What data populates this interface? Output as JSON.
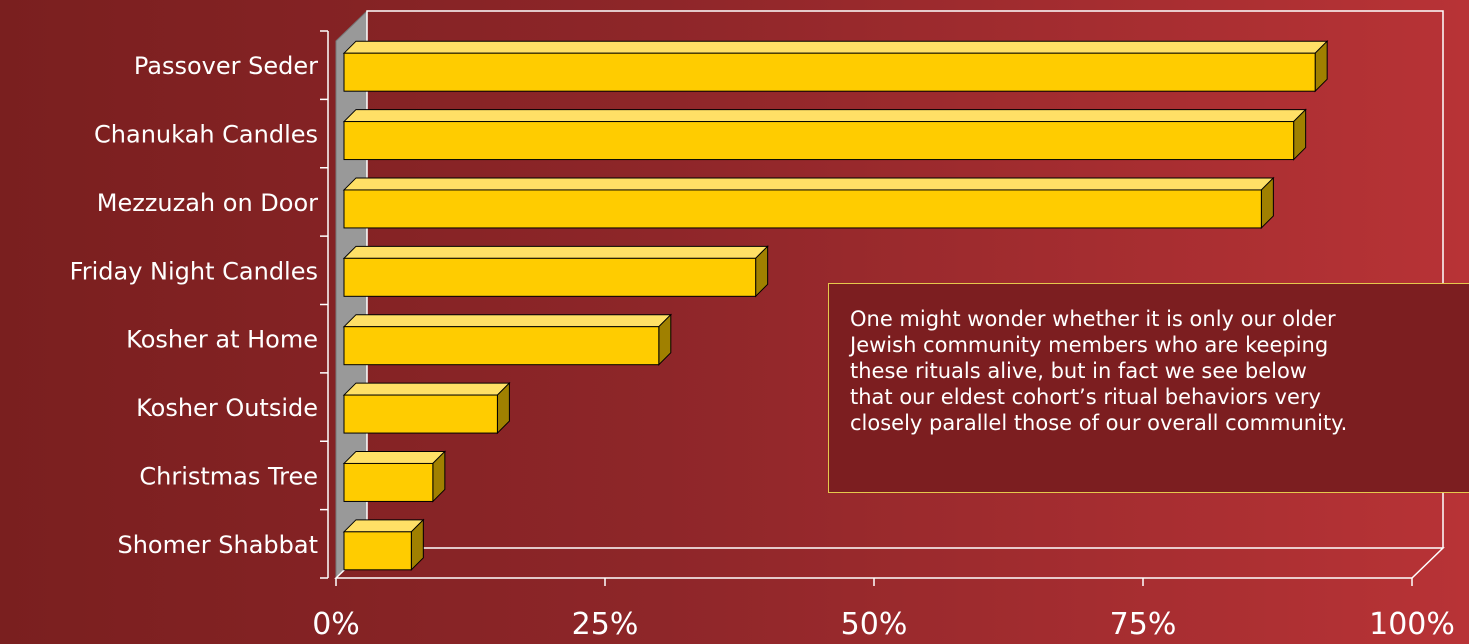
{
  "chart_data": {
    "type": "bar",
    "orientation": "horizontal",
    "categories": [
      "Passover Seder",
      "Chanukah Candles",
      "Mezzuzah on Door",
      "Friday Night Candles",
      "Kosher at Home",
      "Kosher Outside",
      "Christmas Tree",
      "Shomer Shabbat"
    ],
    "values": [
      91,
      89,
      86,
      39,
      30,
      15,
      9,
      7
    ],
    "xlim": [
      0,
      100
    ],
    "x_ticks": [
      "0%",
      "25%",
      "50%",
      "75%",
      "100%"
    ],
    "grid": false,
    "style_3d": true,
    "colors": {
      "bar_front": "#ffcc00",
      "bar_top": "#ffe066",
      "bar_side": "#a08000",
      "wall": "#999999",
      "axis": "#ffffff"
    }
  },
  "annotation": {
    "lines": [
      "One might wonder whether it is only our older",
      "Jewish community members who are keeping",
      "these rituals alive, but in fact we see below",
      "that our eldest cohort’s ritual behaviors very",
      "closely parallel those of our overall community."
    ],
    "border_color": "#e6c84c"
  }
}
